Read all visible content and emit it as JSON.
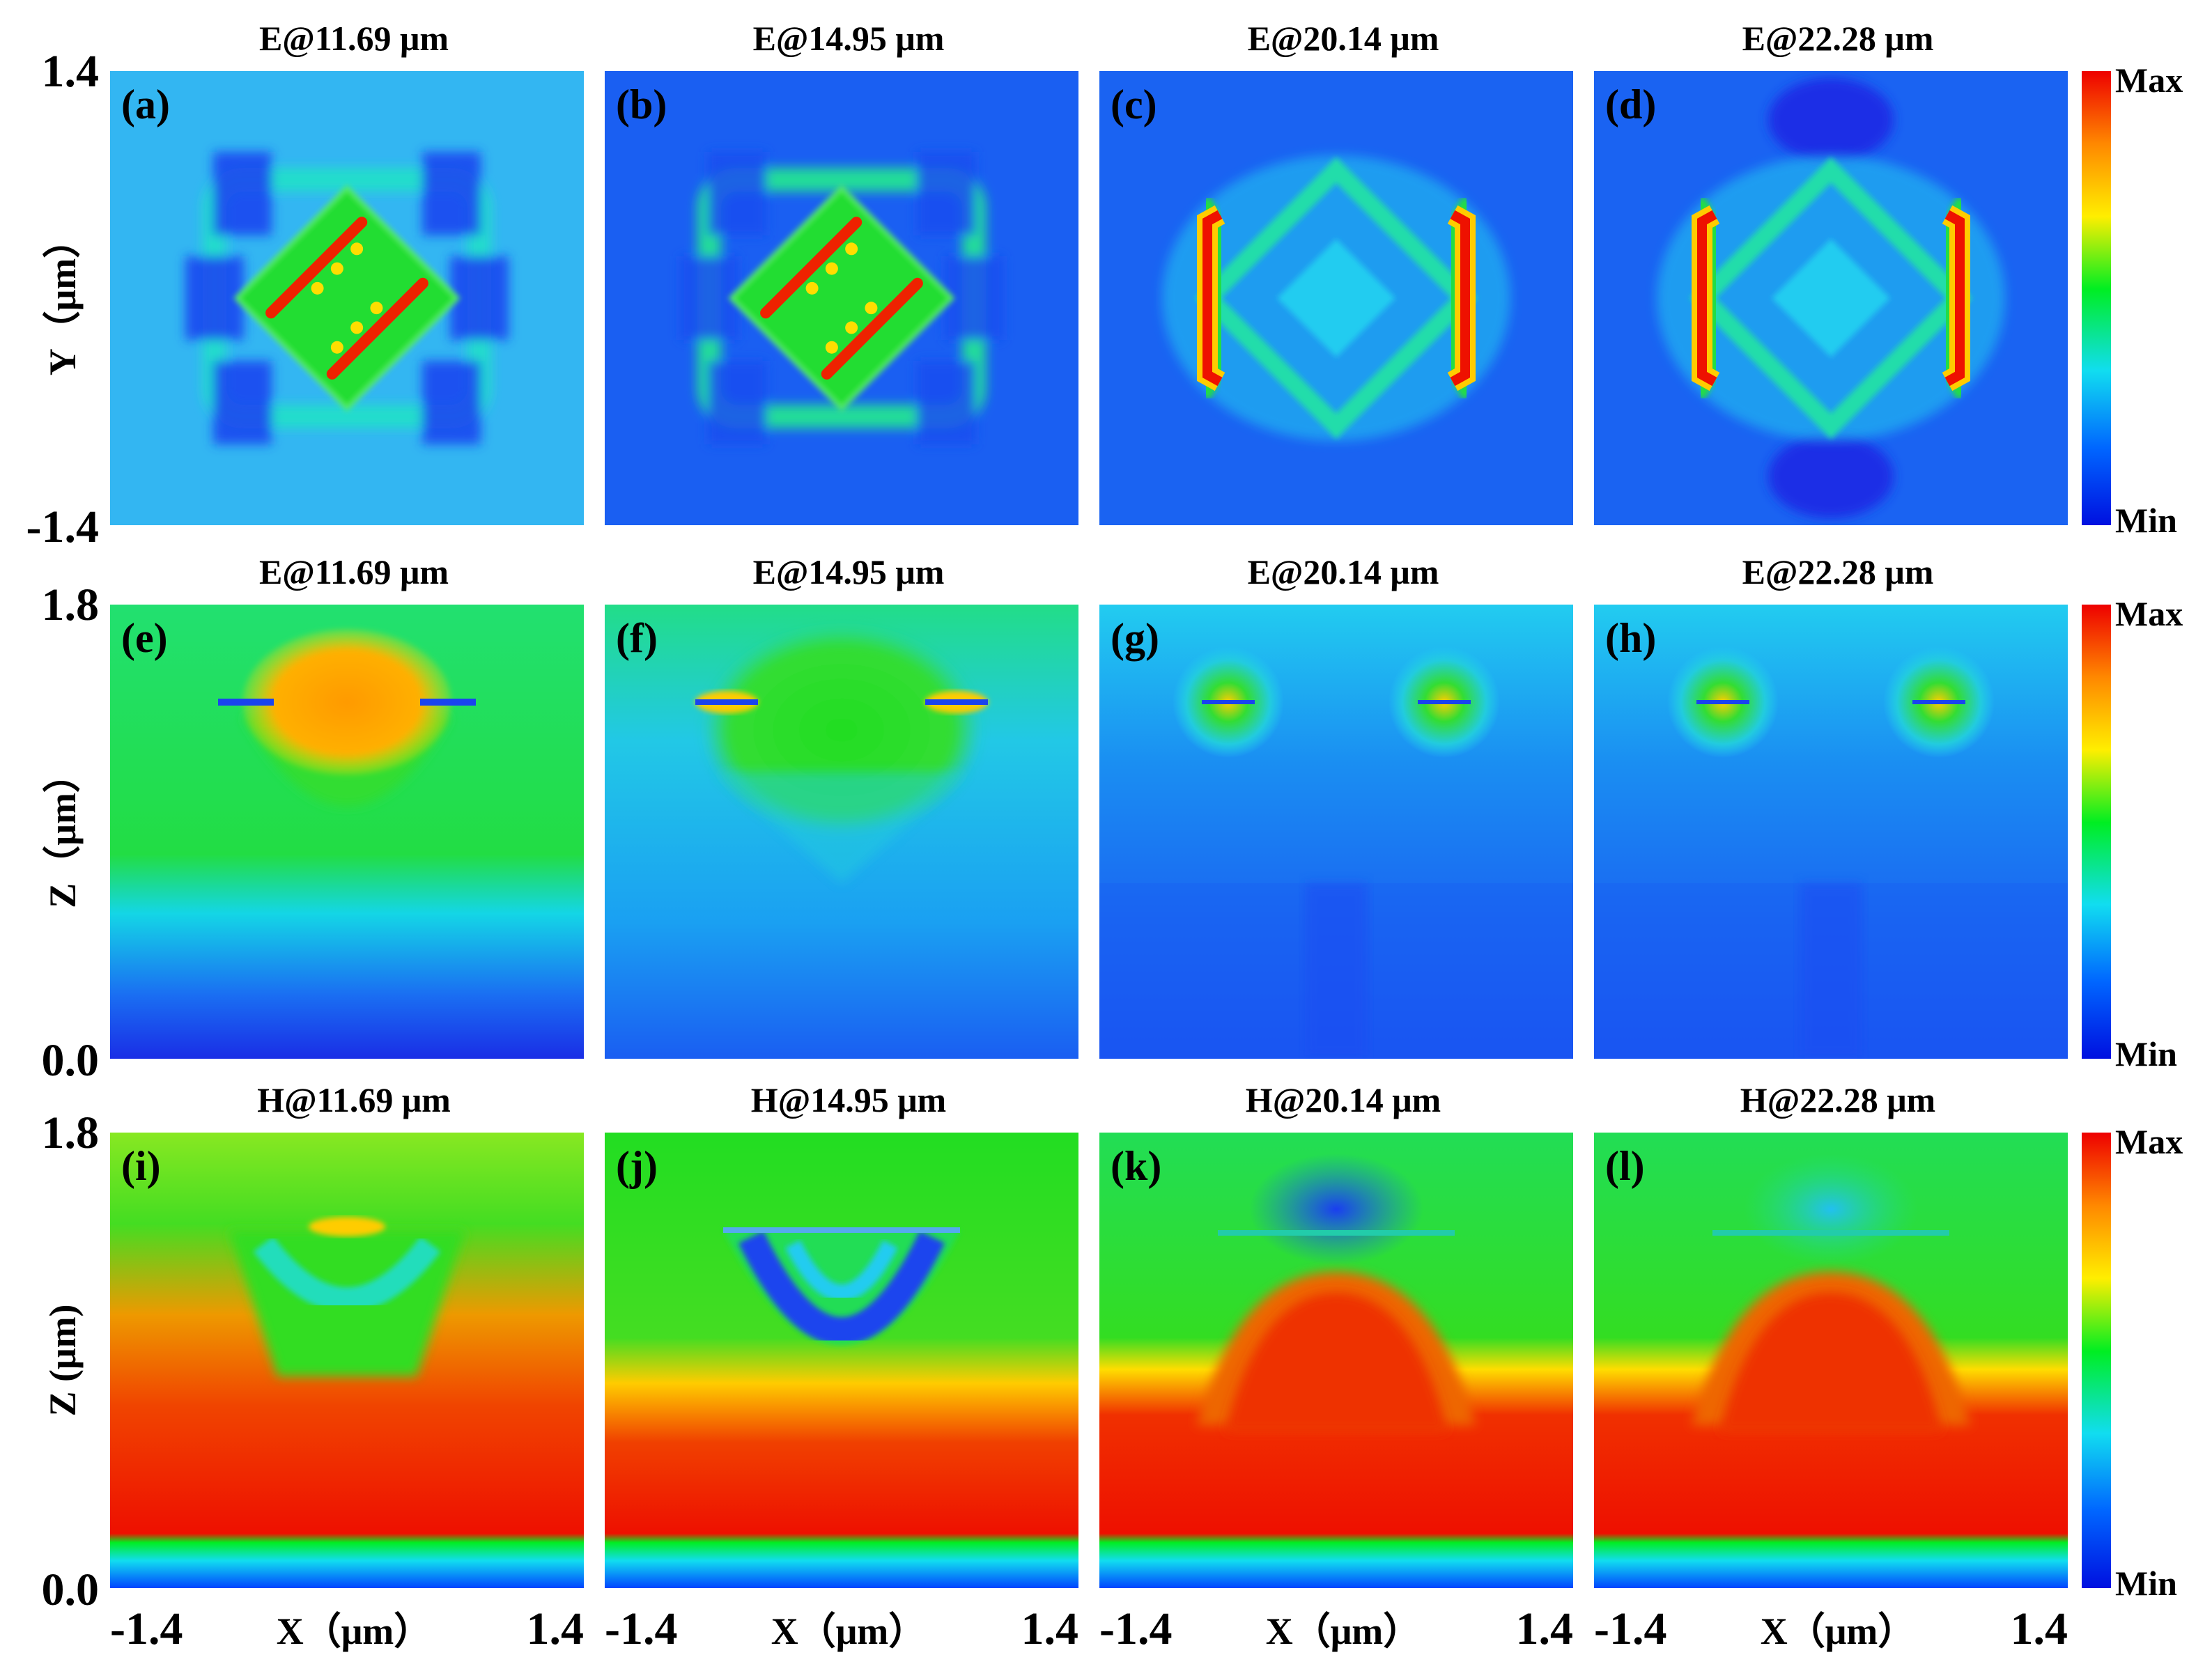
{
  "figure": {
    "colormap_stops": [
      "#0010e0",
      "#0066ff",
      "#11ddf0",
      "#00ee22",
      "#ffee00",
      "#ff8800",
      "#ee0000"
    ],
    "colorbar": {
      "max_label": "Max",
      "min_label": "Min"
    },
    "rows": [
      {
        "plane": "XY",
        "ylabel": "Y（μm）",
        "ytick_top": "1.4",
        "ytick_bottom": "-1.4",
        "panels": [
          {
            "letter": "(a)",
            "title": "E@11.69 μm",
            "field": "E",
            "wavelength_um": 11.69,
            "background": "#33b6f2"
          },
          {
            "letter": "(b)",
            "title": "E@14.95 μm",
            "field": "E",
            "wavelength_um": 14.95,
            "background": "#1a5ff2"
          },
          {
            "letter": "(c)",
            "title": "E@20.14 μm",
            "field": "E",
            "wavelength_um": 20.14,
            "background": "#1a63f2"
          },
          {
            "letter": "(d)",
            "title": "E@22.28 μm",
            "field": "E",
            "wavelength_um": 22.28,
            "background": "#1a63f2"
          }
        ]
      },
      {
        "plane": "XZ",
        "ylabel": "Z（μm）",
        "ytick_top": "1.8",
        "ytick_bottom": "0.0",
        "panels": [
          {
            "letter": "(e)",
            "title": "E@11.69 μm",
            "field": "E",
            "wavelength_um": 11.69
          },
          {
            "letter": "(f)",
            "title": "E@14.95 μm",
            "field": "E",
            "wavelength_um": 14.95
          },
          {
            "letter": "(g)",
            "title": "E@20.14 μm",
            "field": "E",
            "wavelength_um": 20.14
          },
          {
            "letter": "(h)",
            "title": "E@22.28 μm",
            "field": "E",
            "wavelength_um": 22.28
          }
        ]
      },
      {
        "plane": "XZ",
        "ylabel": "Z (μm)",
        "ytick_top": "1.8",
        "ytick_bottom": "0.0",
        "panels": [
          {
            "letter": "(i)",
            "title": "H@11.69 μm",
            "field": "H",
            "wavelength_um": 11.69
          },
          {
            "letter": "(j)",
            "title": "H@14.95 μm",
            "field": "H",
            "wavelength_um": 14.95
          },
          {
            "letter": "(k)",
            "title": "H@20.14 μm",
            "field": "H",
            "wavelength_um": 20.14
          },
          {
            "letter": "(l)",
            "title": "H@22.28 μm",
            "field": "H",
            "wavelength_um": 22.28
          }
        ]
      }
    ],
    "xaxis": {
      "label": "X（μm）",
      "tick_left": "-1.4",
      "tick_right": "1.4"
    }
  },
  "chart_data": {
    "type": "heatmap",
    "grid": "3 rows x 4 columns",
    "x_range_um": [
      -1.4,
      1.4
    ],
    "y_range_row1_um": [
      -1.4,
      1.4
    ],
    "z_range_row2_3_um": [
      0.0,
      1.8
    ],
    "wavelengths_um": [
      11.69,
      14.95,
      20.14,
      22.28
    ],
    "color_scale": "Min (blue) to Max (red)"
  }
}
